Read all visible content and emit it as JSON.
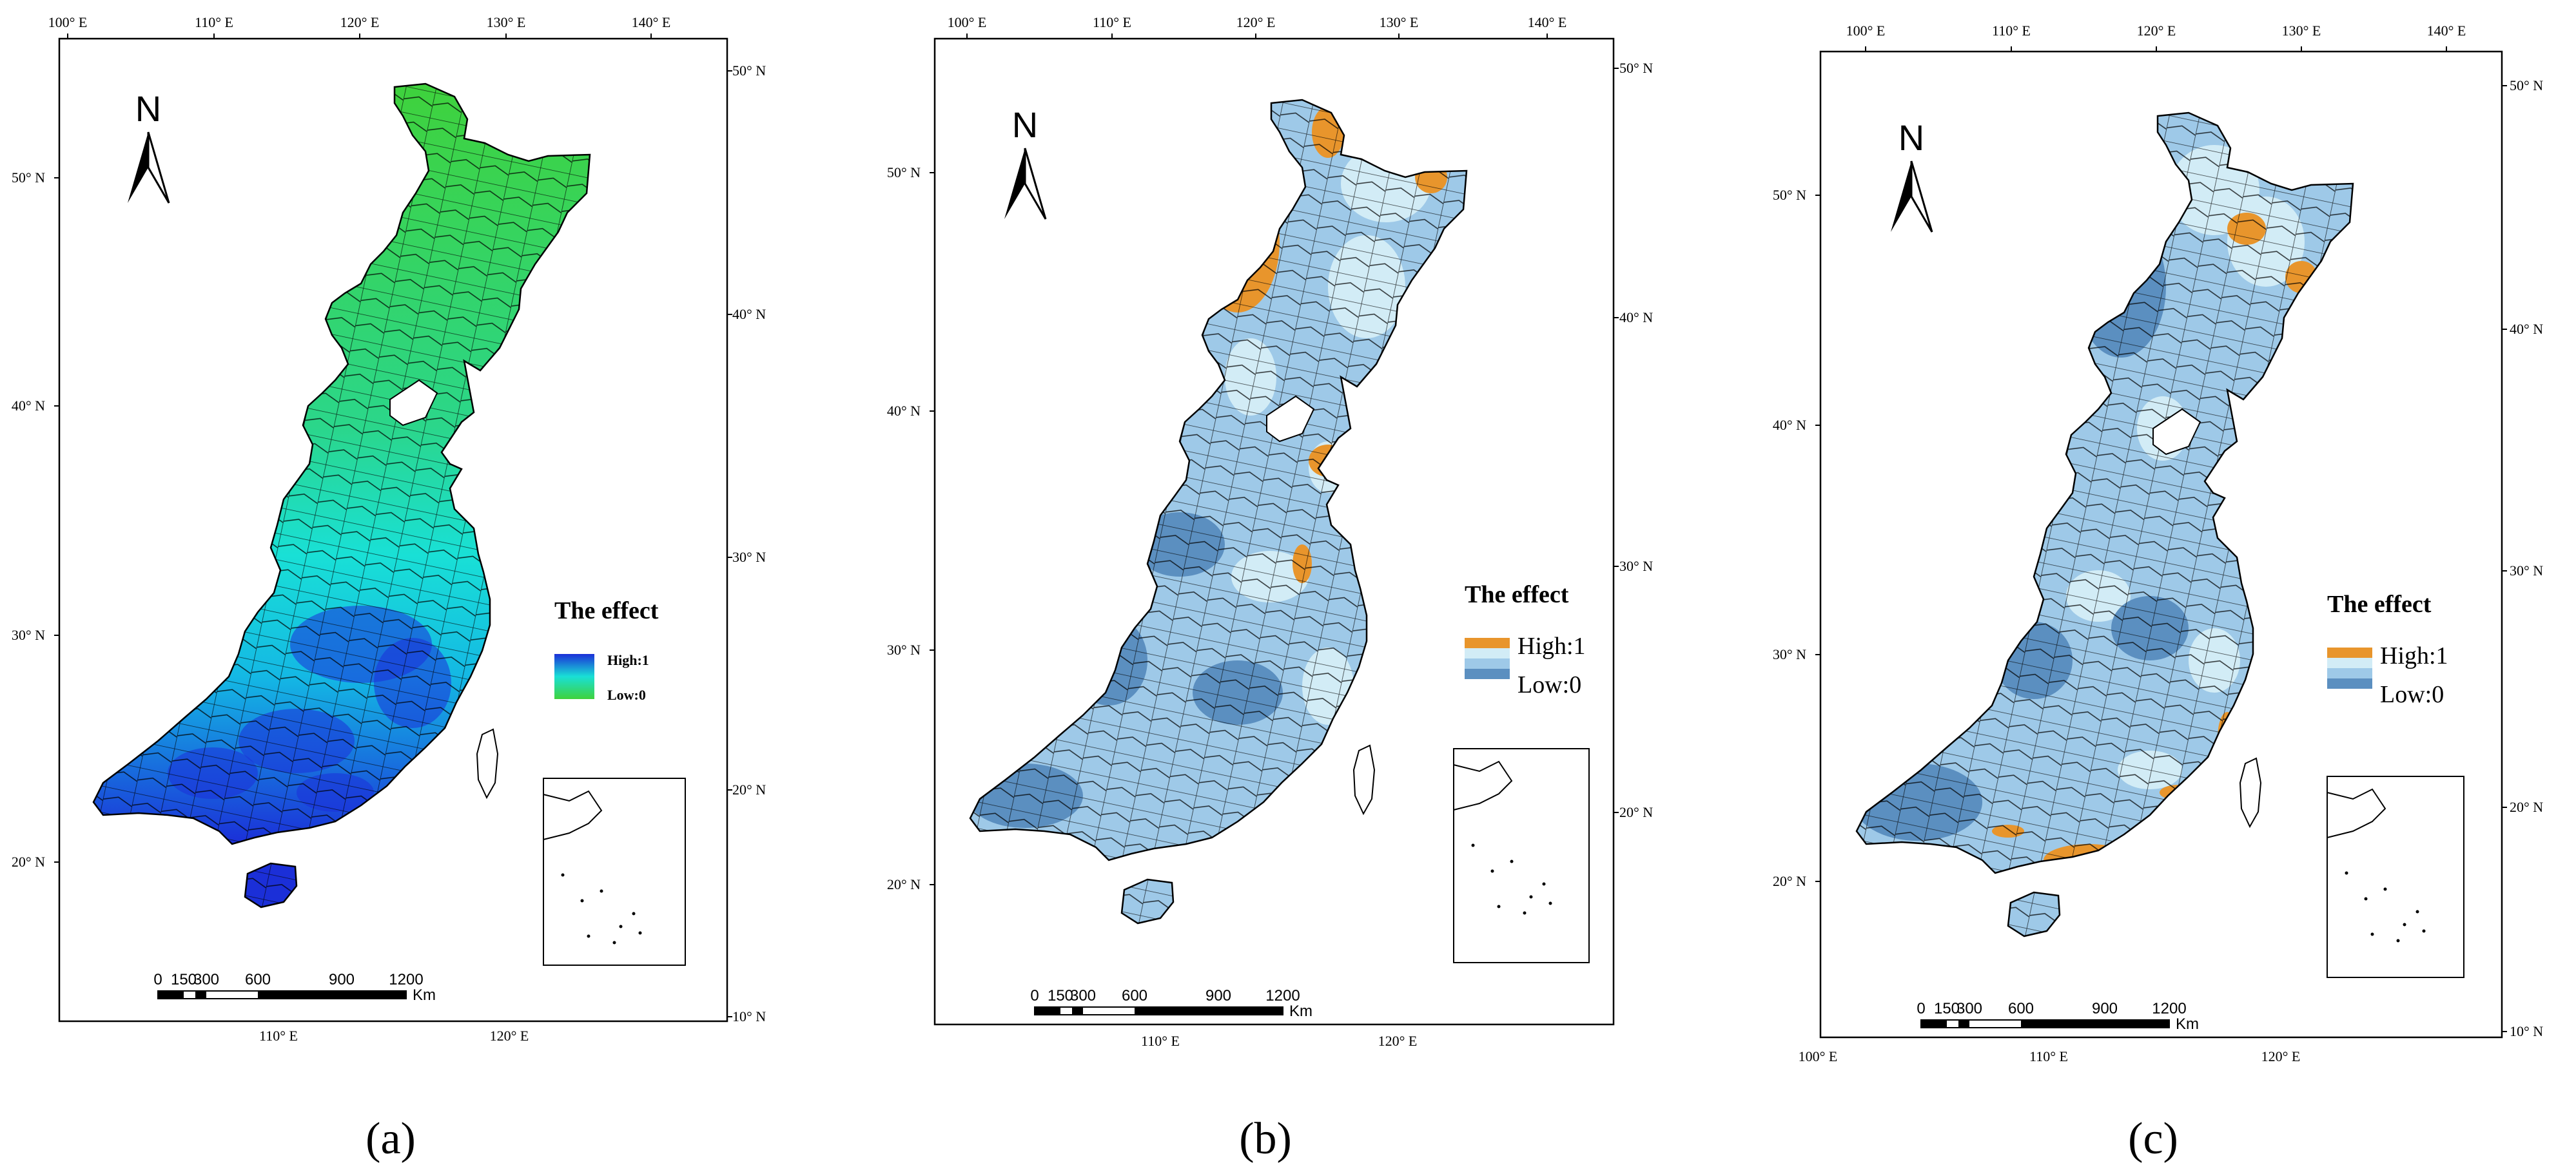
{
  "panels": [
    {
      "id": "a",
      "caption": "(a)",
      "legend_title": "The effect",
      "legend_high": "High:1",
      "legend_low": "Low:0",
      "scheme": "gradient",
      "colors": {
        "high": "#1b2fd8",
        "mid": "#19e0d6",
        "low": "#3fd23c"
      },
      "top_ticks": [
        "100° E",
        "110° E",
        "120° E",
        "130° E",
        "140° E"
      ],
      "bottom_ticks": [
        "110° E",
        "120° E"
      ],
      "left_ticks": [
        "50° N",
        "40° N",
        "30° N",
        "20° N"
      ],
      "right_ticks": [
        "50° N",
        "40° N",
        "30° N",
        "20° N",
        "10° N"
      ],
      "scale_numbers": [
        "0",
        "150",
        "300",
        "600",
        "900",
        "1200"
      ],
      "scale_unit": "Km",
      "north_label": "N"
    },
    {
      "id": "b",
      "caption": "(b)",
      "legend_title": "The effect",
      "legend_high": "High:1",
      "legend_low": "Low:0",
      "scheme": "classes",
      "colors": {
        "high": "#e8952c",
        "mid_light": "#d2ecf6",
        "mid": "#9ec9e8",
        "low": "#5b8fc0"
      },
      "top_ticks": [
        "100° E",
        "110° E",
        "120° E",
        "130° E",
        "140° E"
      ],
      "bottom_ticks": [
        "110° E",
        "120° E"
      ],
      "left_ticks": [
        "50° N",
        "40° N",
        "30° N",
        "20° N"
      ],
      "right_ticks": [
        "50° N",
        "40° N",
        "30° N",
        "20° N"
      ],
      "scale_numbers": [
        "0",
        "150",
        "300",
        "600",
        "900",
        "1200"
      ],
      "scale_unit": "Km",
      "north_label": "N"
    },
    {
      "id": "c",
      "caption": "(c)",
      "legend_title": "The effect",
      "legend_high": "High:1",
      "legend_low": "Low:0",
      "scheme": "classes",
      "colors": {
        "high": "#e8952c",
        "mid_light": "#d2ecf6",
        "mid": "#9ec9e8",
        "low": "#5b8fc0"
      },
      "top_ticks": [
        "100° E",
        "110° E",
        "120° E",
        "130° E",
        "140° E"
      ],
      "bottom_ticks": [
        "100° E",
        "110° E",
        "120° E"
      ],
      "left_ticks": [
        "50° N",
        "40° N",
        "30° N",
        "20° N"
      ],
      "right_ticks": [
        "50° N",
        "40° N",
        "30° N",
        "20° N",
        "10° N"
      ],
      "scale_numbers": [
        "0",
        "150",
        "300",
        "600",
        "900",
        "1200"
      ],
      "scale_unit": "Km",
      "north_label": "N"
    }
  ]
}
